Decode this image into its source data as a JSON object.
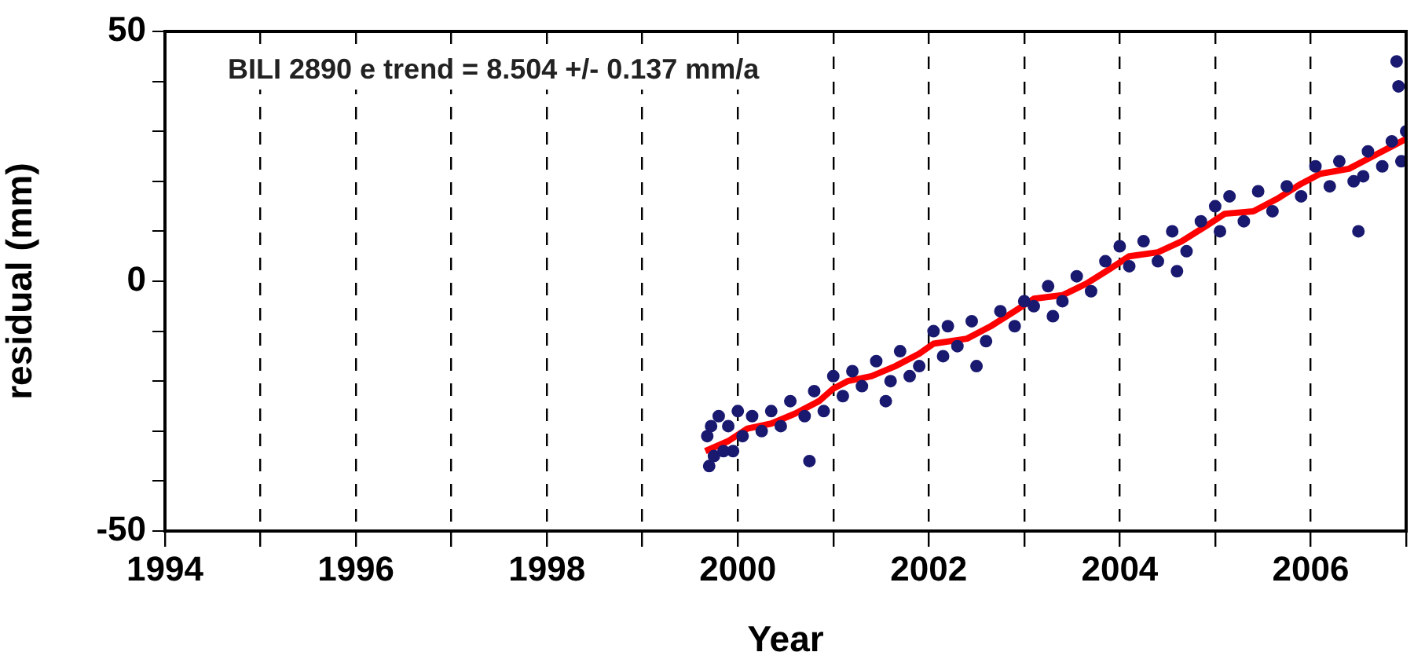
{
  "chart_data": {
    "type": "scatter",
    "xlabel": "Year",
    "ylabel": "residual (mm)",
    "annotations": [
      "BILI 2890 e trend = 8.504 +/- 0.137 mm/a"
    ],
    "xlim": [
      1994,
      2007
    ],
    "xticks": [
      1994,
      {
        "value": 1995,
        "label": null
      },
      1996,
      {
        "value": 1997,
        "label": null
      },
      1998,
      {
        "value": 1999,
        "label": null
      },
      2000,
      {
        "value": 2001,
        "label": null
      },
      2002,
      {
        "value": 2003,
        "label": null
      },
      2004,
      {
        "value": 2005,
        "label": null
      },
      2006,
      {
        "value": 2007,
        "label": null
      }
    ],
    "ylim": [
      -50,
      50
    ],
    "yticks": [
      -50,
      {
        "value": -40,
        "label": null
      },
      {
        "value": -30,
        "label": null
      },
      {
        "value": -20,
        "label": null
      },
      {
        "value": -10,
        "label": null
      },
      0,
      {
        "value": 10,
        "label": null
      },
      {
        "value": 20,
        "label": null
      },
      {
        "value": 30,
        "label": null
      },
      {
        "value": 40,
        "label": null
      },
      50
    ],
    "grid": "x",
    "legend": false,
    "series": [
      {
        "color": "#191970",
        "marker": "circle",
        "x": [
          1999.68,
          1999.7,
          1999.72,
          1999.75,
          1999.8,
          1999.85,
          1999.9,
          2000.0,
          2000.05,
          2000.15,
          2000.25,
          2000.35,
          2000.45,
          2000.55,
          2000.7,
          2000.8,
          2000.9,
          2001.0,
          2001.1,
          2001.2,
          2001.3,
          2001.45,
          2001.6,
          2001.7,
          2001.8,
          2001.9,
          1999.95,
          2002.05,
          2002.15,
          2002.2,
          2002.3,
          2002.45,
          2002.6,
          2002.75,
          2002.9,
          2003.0,
          2003.1,
          2003.25,
          2003.4,
          2003.55,
          2003.7,
          2003.85,
          2004.0,
          2004.1,
          2004.25,
          2004.4,
          2004.55,
          2004.7,
          2004.85,
          2005.0,
          2005.05,
          2005.15,
          2005.3,
          2005.45,
          2005.6,
          2005.75,
          2005.9,
          2006.05,
          2006.2,
          2006.3,
          2006.45,
          2006.5,
          2006.55,
          2006.6,
          2006.75,
          2006.85,
          2006.9,
          2006.92,
          2006.95,
          2007.0,
          2000.75,
          2001.55,
          2002.5,
          2003.3,
          2004.6
        ],
        "values": [
          -31,
          -37,
          -29,
          -35,
          -27,
          -34,
          -29,
          -26,
          -31,
          -27,
          -30,
          -26,
          -29,
          -24,
          -27,
          -22,
          -26,
          -19,
          -23,
          -18,
          -21,
          -16,
          -20,
          -14,
          -19,
          -17,
          -34,
          -10,
          -15,
          -9,
          -13,
          -8,
          -12,
          -6,
          -9,
          -4,
          -5,
          -1,
          -4,
          1,
          -2,
          4,
          7,
          3,
          8,
          4,
          10,
          6,
          12,
          15,
          10,
          17,
          12,
          18,
          14,
          19,
          17,
          23,
          19,
          24,
          20,
          10,
          21,
          26,
          23,
          28,
          44,
          39,
          24,
          30,
          -36,
          -24,
          -17,
          -7,
          2
        ]
      },
      {
        "type": "line",
        "color": "#ff0000",
        "marker": "none",
        "line_style": "solid",
        "x": [
          1999.66,
          1999.9,
          2000.1,
          2000.35,
          2000.6,
          2000.85,
          2001.0,
          2001.15,
          2001.4,
          2001.65,
          2001.9,
          2002.05,
          2002.4,
          2002.65,
          2002.9,
          2003.1,
          2003.4,
          2003.65,
          2003.9,
          2004.1,
          2004.4,
          2004.65,
          2004.9,
          2005.1,
          2005.4,
          2005.65,
          2005.9,
          2006.1,
          2006.4,
          2006.65,
          2006.9,
          2007.0
        ],
        "values": [
          -34,
          -32,
          -29.5,
          -28.5,
          -26.5,
          -24,
          -21.5,
          -20,
          -19,
          -17,
          -14.5,
          -12.5,
          -11.5,
          -9,
          -6,
          -3.5,
          -2.8,
          -0.5,
          2.5,
          5,
          5.8,
          8,
          11,
          13.5,
          14,
          16.5,
          19.5,
          21.5,
          22.5,
          25,
          27.5,
          28.5
        ]
      }
    ]
  }
}
